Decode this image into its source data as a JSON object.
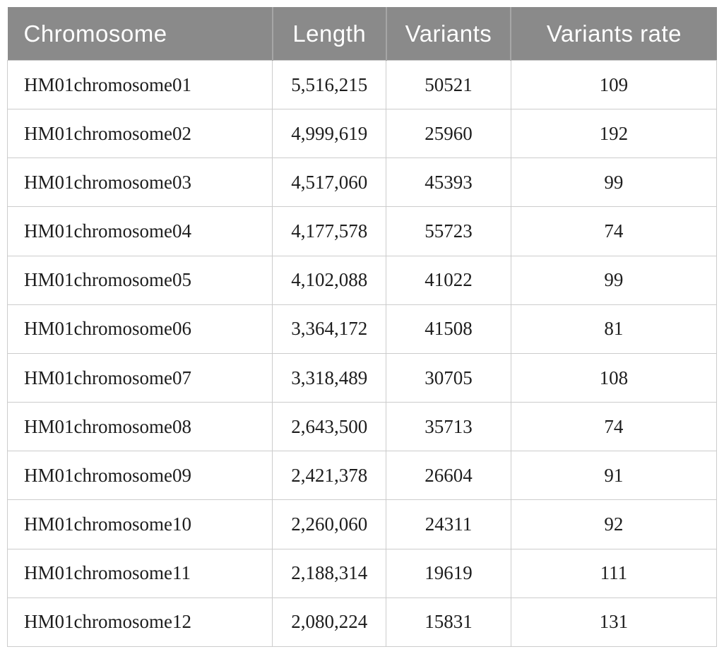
{
  "chart_data": {
    "type": "table",
    "title": "",
    "columns": [
      "Chromosome",
      "Length",
      "Variants",
      "Variants rate"
    ],
    "rows": [
      [
        "HM01chromosome01",
        "5,516,215",
        "50521",
        "109"
      ],
      [
        "HM01chromosome02",
        "4,999,619",
        "25960",
        "192"
      ],
      [
        "HM01chromosome03",
        "4,517,060",
        "45393",
        "99"
      ],
      [
        "HM01chromosome04",
        "4,177,578",
        "55723",
        "74"
      ],
      [
        "HM01chromosome05",
        "4,102,088",
        "41022",
        "99"
      ],
      [
        "HM01chromosome06",
        "3,364,172",
        "41508",
        "81"
      ],
      [
        "HM01chromosome07",
        "3,318,489",
        "30705",
        "108"
      ],
      [
        "HM01chromosome08",
        "2,643,500",
        "35713",
        "74"
      ],
      [
        "HM01chromosome09",
        "2,421,378",
        "26604",
        "91"
      ],
      [
        "HM01chromosome10",
        "2,260,060",
        "24311",
        "92"
      ],
      [
        "HM01chromosome11",
        "2,188,314",
        "19619",
        "111"
      ],
      [
        "HM01chromosome12",
        "2,080,224",
        "15831",
        "131"
      ]
    ]
  },
  "colors": {
    "header_bg": "#8a8a8a",
    "header_text": "#ffffff",
    "header_divider": "#a6a6a6",
    "grid": "#cccccc",
    "body_text": "#1d1d1d"
  }
}
